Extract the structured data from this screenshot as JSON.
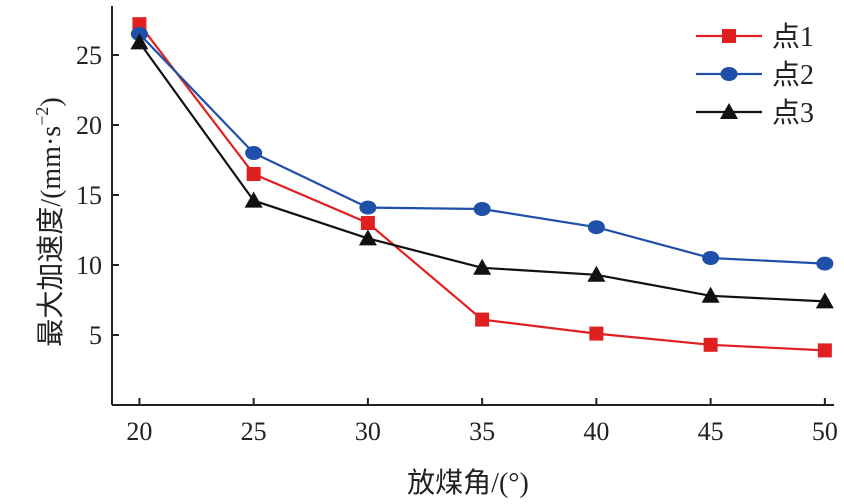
{
  "chart_data": {
    "type": "line",
    "x": [
      20,
      25,
      30,
      35,
      40,
      45,
      50
    ],
    "series": [
      {
        "name": "点1",
        "values": [
          27.2,
          16.5,
          13.0,
          6.1,
          5.1,
          4.3,
          3.9
        ],
        "color": "#e02020",
        "marker": "square"
      },
      {
        "name": "点2",
        "values": [
          26.5,
          18.0,
          14.1,
          14.0,
          12.7,
          10.5,
          10.1
        ],
        "color": "#1f4fa8",
        "marker": "circle"
      },
      {
        "name": "点3",
        "values": [
          25.9,
          14.6,
          11.9,
          9.8,
          9.3,
          7.8,
          7.4
        ],
        "color": "#111111",
        "marker": "triangle"
      }
    ],
    "xlabel": "放煤角/(°)",
    "ylabel": "最大加速度/(mm·s",
    "ylabel_sup": "−2",
    "ylabel_close": ")",
    "xlim": [
      18.8,
      50.4
    ],
    "ylim": [
      0,
      28.5
    ],
    "xticks": [
      20,
      25,
      30,
      35,
      40,
      45,
      50
    ],
    "yticks": [
      5,
      10,
      15,
      20,
      25
    ],
    "grid": false,
    "legend_position": "top-right"
  }
}
